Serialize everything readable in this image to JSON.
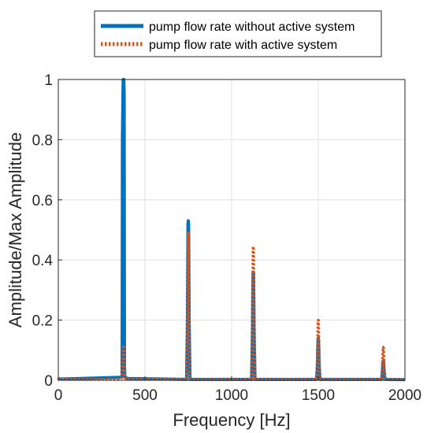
{
  "chart_data": {
    "type": "line",
    "title": "",
    "xlabel": "Frequency [Hz]",
    "ylabel": "Amplitude/Max Amplitude",
    "xlim": [
      0,
      2000
    ],
    "ylim": [
      0,
      1
    ],
    "x_ticks": [
      "0",
      "500",
      "1000",
      "1500",
      "2000"
    ],
    "y_ticks": [
      "0",
      "0.2",
      "0.4",
      "0.6",
      "0.8",
      "1"
    ],
    "grid": true,
    "legend_position": "top (outside plot)",
    "series": [
      {
        "name": "pump flow rate without active system",
        "color": "#0072BD",
        "style": "solid",
        "x": [
          0,
          5,
          10,
          360,
          368,
          370,
          374,
          376,
          378,
          380,
          382,
          384,
          392,
          400,
          740,
          745,
          748,
          750,
          752,
          755,
          760,
          1115,
          1120,
          1123,
          1125,
          1127,
          1130,
          1135,
          1490,
          1495,
          1498,
          1500,
          1502,
          1505,
          1510,
          1865,
          1870,
          1873,
          1875,
          1877,
          1880,
          1885,
          2000
        ],
        "y": [
          0.008,
          0.004,
          0.004,
          0.01,
          0.015,
          0.8,
          1.0,
          1.0,
          1.0,
          0.95,
          0.05,
          0.01,
          0.008,
          0.006,
          0.003,
          0.2,
          0.52,
          0.53,
          0.52,
          0.2,
          0.003,
          0.003,
          0.15,
          0.35,
          0.36,
          0.35,
          0.15,
          0.003,
          0.003,
          0.05,
          0.13,
          0.14,
          0.13,
          0.05,
          0.003,
          0.003,
          0.03,
          0.06,
          0.065,
          0.06,
          0.03,
          0.003,
          0.002
        ]
      },
      {
        "name": "pump flow rate with active system",
        "color": "#D95319",
        "style": "dotted",
        "x": [
          0,
          10,
          360,
          368,
          372,
          375,
          378,
          381,
          385,
          392,
          400,
          740,
          745,
          748,
          750,
          752,
          755,
          760,
          1115,
          1120,
          1123,
          1125,
          1127,
          1130,
          1135,
          1490,
          1495,
          1498,
          1500,
          1502,
          1505,
          1510,
          1865,
          1870,
          1873,
          1875,
          1877,
          1880,
          1885,
          2000
        ],
        "y": [
          0.003,
          0.003,
          0.003,
          0.01,
          0.06,
          0.11,
          0.11,
          0.06,
          0.01,
          0.004,
          0.003,
          0.003,
          0.2,
          0.46,
          0.49,
          0.46,
          0.2,
          0.003,
          0.003,
          0.2,
          0.43,
          0.445,
          0.43,
          0.2,
          0.003,
          0.003,
          0.08,
          0.19,
          0.2,
          0.19,
          0.08,
          0.003,
          0.003,
          0.05,
          0.105,
          0.11,
          0.105,
          0.05,
          0.003,
          0.003
        ]
      }
    ]
  }
}
